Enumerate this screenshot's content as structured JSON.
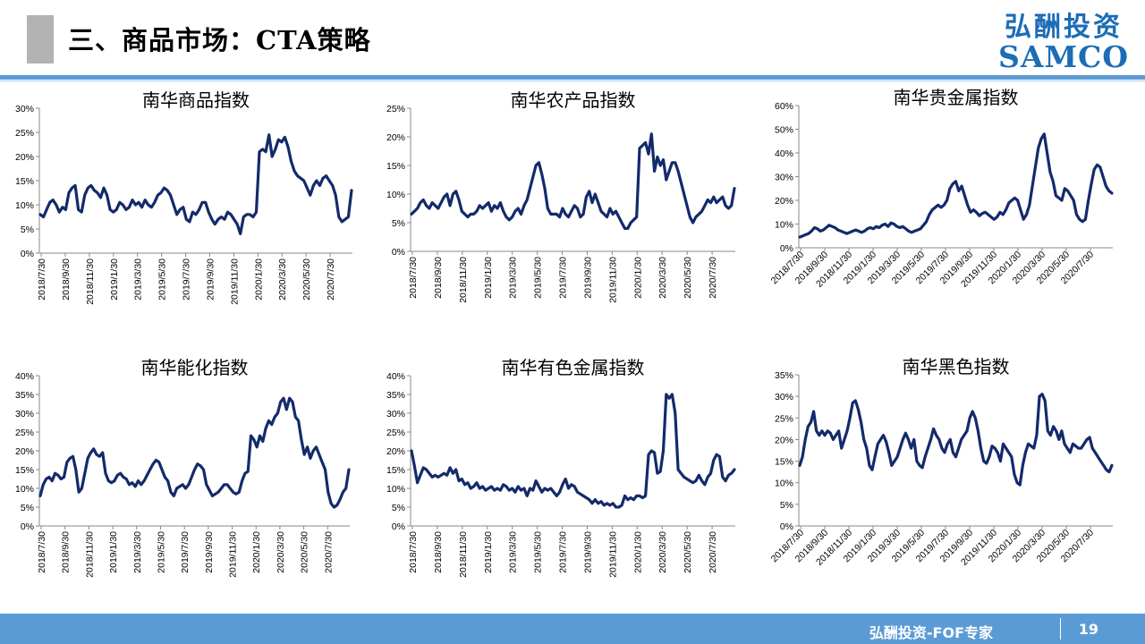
{
  "header": {
    "title": "三、商品市场：CTA策略",
    "logo_cn": "弘酬投资",
    "logo_en": "SAMCO"
  },
  "footer": {
    "text": "弘酬投资-FOF专家",
    "page_number": "19"
  },
  "colors": {
    "line": "#132a6b",
    "accent": "#5b9bd5",
    "axis": "#888888"
  },
  "chart_data": [
    {
      "type": "line",
      "title": "南华商品指数",
      "x_ticks": [
        "2018/7/30",
        "2018/9/30",
        "2018/11/30",
        "2019/1/30",
        "2019/3/30",
        "2019/5/30",
        "2019/7/30",
        "2019/9/30",
        "2019/11/30",
        "2020/1/30",
        "2020/3/30",
        "2020/5/30",
        "2020/7/30"
      ],
      "y_ticks": [
        "0%",
        "5%",
        "10%",
        "15%",
        "20%",
        "25%",
        "30%"
      ],
      "ylim": [
        0,
        30
      ],
      "series": [
        {
          "values": [
            8,
            7.5,
            9,
            10.5,
            11,
            10,
            8.5,
            9.5,
            9,
            12.5,
            13.5,
            14,
            9,
            8.5,
            12,
            13.5,
            14,
            13,
            12.5,
            11.5,
            13.5,
            12,
            9,
            8.5,
            9,
            10.5,
            10,
            9,
            9.5,
            11,
            10,
            10.5,
            9.5,
            11,
            10,
            9.5,
            10.5,
            12,
            12.5,
            13.5,
            13,
            12,
            10,
            8,
            9,
            9.5,
            7,
            6.5,
            8.5,
            8,
            9,
            10.5,
            10.5,
            8.5,
            7,
            6,
            7,
            7.5,
            7,
            8.5,
            8,
            7,
            6,
            4,
            7.5,
            8,
            8,
            7.5,
            8.5,
            21,
            21.5,
            21,
            24.5,
            20,
            21.5,
            23.5,
            23,
            24,
            22,
            19,
            17,
            16,
            15.5,
            15,
            13.5,
            12,
            14,
            15,
            14,
            15.5,
            16,
            15,
            14,
            12,
            7.5,
            6.5,
            7,
            7.5,
            13
          ]
        }
      ]
    },
    {
      "type": "line",
      "title": "南华农产品指数",
      "x_ticks": [
        "2018/7/30",
        "2018/9/30",
        "2018/11/30",
        "2019/1/30",
        "2019/3/30",
        "2019/5/30",
        "2019/7/30",
        "2019/9/30",
        "2019/11/30",
        "2020/1/30",
        "2020/3/30",
        "2020/5/30",
        "2020/7/30"
      ],
      "y_ticks": [
        "0%",
        "5%",
        "10%",
        "15%",
        "20%",
        "25%"
      ],
      "ylim": [
        0,
        25
      ],
      "series": [
        {
          "values": [
            6.5,
            7,
            7.5,
            8.5,
            9,
            8,
            7.5,
            8.5,
            8,
            7.5,
            8.5,
            9.5,
            10,
            8,
            10,
            10.5,
            9,
            7,
            6.5,
            6,
            6.5,
            6.5,
            7,
            8,
            7.5,
            8,
            8.5,
            7,
            8,
            7.5,
            8.5,
            7,
            6,
            5.5,
            6,
            7,
            7.5,
            6.5,
            8,
            9,
            11,
            13,
            15,
            15.5,
            13.5,
            11,
            7.5,
            6.5,
            6.5,
            6.5,
            6,
            7.5,
            6.5,
            6,
            7,
            8,
            7.5,
            6,
            6.5,
            9.5,
            10.5,
            8.5,
            10,
            8.5,
            7,
            6.5,
            6,
            7.5,
            6.5,
            7,
            6,
            5,
            4,
            4,
            5,
            5.5,
            6,
            18,
            18.5,
            19,
            17,
            20.5,
            14,
            16.5,
            15,
            16,
            12.5,
            14,
            15.5,
            15.5,
            14,
            12,
            10,
            8,
            6,
            5,
            6,
            6.5,
            7,
            8,
            9,
            8.5,
            9.5,
            8.5,
            9,
            9.5,
            8,
            7.5,
            8,
            11
          ]
        }
      ]
    },
    {
      "type": "line",
      "title": "南华贵金属指数",
      "x_ticks": [
        "2018/7/30",
        "2018/9/30",
        "2018/11/30",
        "2019/1/30",
        "2019/3/30",
        "2019/5/30",
        "2019/7/30",
        "2019/9/30",
        "2019/11/30",
        "2020/1/30",
        "2020/3/30",
        "2020/5/30",
        "2020/7/30"
      ],
      "y_ticks": [
        "0%",
        "10%",
        "20%",
        "30%",
        "40%",
        "50%",
        "60%"
      ],
      "ylim": [
        0,
        60
      ],
      "series": [
        {
          "values": [
            4.5,
            5,
            5.5,
            6,
            7,
            8.5,
            8,
            7,
            7.5,
            8.5,
            9.5,
            9,
            8.5,
            7.5,
            7,
            6.5,
            6,
            6.5,
            7,
            7.5,
            7,
            6.5,
            7,
            8,
            8.5,
            8,
            9,
            8.5,
            9.5,
            10,
            9,
            10.5,
            10,
            9,
            8.5,
            9,
            8,
            7,
            6.5,
            7,
            7.5,
            8,
            9.5,
            11,
            14,
            16,
            17,
            18,
            17,
            18,
            20,
            25,
            27,
            28,
            24,
            26,
            22,
            18,
            15,
            16,
            15,
            13.5,
            14.5,
            15,
            14,
            13,
            12,
            13,
            15,
            14,
            16,
            19,
            20,
            21,
            20,
            16,
            12,
            14,
            18,
            26,
            34,
            42,
            46,
            48,
            40,
            32,
            28,
            22,
            21,
            20,
            25,
            24,
            22,
            20,
            14,
            12,
            11,
            12,
            20,
            27,
            33,
            35,
            34,
            30,
            26,
            24,
            23
          ]
        }
      ]
    },
    {
      "type": "line",
      "title": "南华能化指数",
      "x_ticks": [
        "2018/7/30",
        "2018/9/30",
        "2018/11/30",
        "2019/1/30",
        "2019/3/30",
        "2019/5/30",
        "2019/7/30",
        "2019/9/30",
        "2019/11/30",
        "2020/1/30",
        "2020/3/30",
        "2020/5/30",
        "2020/7/30"
      ],
      "y_ticks": [
        "0%",
        "5%",
        "10%",
        "15%",
        "20%",
        "25%",
        "30%",
        "35%",
        "40%"
      ],
      "ylim": [
        0,
        40
      ],
      "series": [
        {
          "values": [
            8,
            11,
            12.5,
            13,
            12,
            14,
            13.5,
            12.5,
            13,
            17,
            18,
            18.5,
            15,
            9,
            10,
            14,
            18,
            19.5,
            20.5,
            19,
            18.5,
            19.5,
            14,
            12,
            11.5,
            12,
            13.5,
            14,
            13,
            12.5,
            11,
            11.5,
            10.5,
            12,
            11,
            12,
            13.5,
            15,
            16.5,
            17.5,
            17,
            15,
            13,
            12,
            9,
            8,
            10,
            10.5,
            11,
            10,
            11,
            13,
            15,
            16.5,
            16,
            15,
            11,
            9.5,
            8,
            8.5,
            9,
            10,
            11,
            11,
            10,
            9,
            8.5,
            9,
            12,
            14,
            14.5,
            24,
            23,
            21,
            24,
            22.5,
            26,
            28,
            27,
            29,
            30,
            33,
            34,
            31,
            34,
            33,
            29,
            28,
            23,
            19,
            21,
            18,
            20,
            21,
            19,
            17,
            15,
            9,
            6,
            5,
            5.5,
            7,
            9,
            10,
            15
          ]
        }
      ]
    },
    {
      "type": "line",
      "title": "南华有色金属指数",
      "x_ticks": [
        "2018/7/30",
        "2018/9/30",
        "2018/11/30",
        "2019/1/30",
        "2019/3/30",
        "2019/5/30",
        "2019/7/30",
        "2019/9/30",
        "2019/11/30",
        "2020/1/30",
        "2020/3/30",
        "2020/5/30",
        "2020/7/30"
      ],
      "y_ticks": [
        "0%",
        "5%",
        "10%",
        "15%",
        "20%",
        "25%",
        "30%",
        "35%",
        "40%"
      ],
      "ylim": [
        0,
        40
      ],
      "series": [
        {
          "values": [
            20,
            16,
            11.5,
            13.5,
            15.5,
            15,
            14,
            13,
            13.5,
            13,
            13.5,
            14,
            13.5,
            15.5,
            14,
            15,
            12,
            12.5,
            11,
            11.5,
            10,
            10.5,
            11.5,
            10,
            10.5,
            9.5,
            10,
            10.5,
            9.5,
            10,
            9.5,
            11,
            10.5,
            9.5,
            10,
            9,
            10.5,
            9.5,
            10,
            8,
            10,
            9.5,
            12,
            10.5,
            9,
            10,
            9.5,
            10,
            9,
            8,
            9,
            11,
            12.5,
            10,
            11,
            10.5,
            9,
            8.5,
            8,
            7.5,
            7,
            6,
            7,
            6,
            6.5,
            5.5,
            6,
            5.5,
            6,
            5,
            5,
            5.5,
            8,
            7,
            7.5,
            7,
            8,
            8,
            7.5,
            8,
            19,
            20,
            19.5,
            14,
            14.5,
            20,
            35,
            34,
            35,
            30,
            15,
            14,
            13,
            12.5,
            12,
            11.5,
            12,
            13.5,
            12,
            11,
            13,
            14,
            17.5,
            19,
            18.5,
            13,
            12,
            13.5,
            14,
            15
          ]
        }
      ]
    },
    {
      "type": "line",
      "title": "南华黑色指数",
      "x_ticks": [
        "2018/7/30",
        "2018/9/30",
        "2018/11/30",
        "2019/1/30",
        "2019/3/30",
        "2019/5/30",
        "2019/7/30",
        "2019/9/30",
        "2019/11/30",
        "2020/1/30",
        "2020/3/30",
        "2020/5/30",
        "2020/7/30"
      ],
      "y_ticks": [
        "0%",
        "5%",
        "10%",
        "15%",
        "20%",
        "25%",
        "30%",
        "35%"
      ],
      "ylim": [
        0,
        35
      ],
      "series": [
        {
          "values": [
            14,
            16,
            20,
            23,
            24,
            26.5,
            22,
            21,
            22,
            21,
            22,
            21.5,
            20,
            21,
            22,
            18,
            20,
            22,
            25,
            28.5,
            29,
            27,
            24,
            20,
            18,
            14,
            13,
            16,
            19,
            20,
            21,
            19.5,
            17,
            14,
            15,
            16,
            18,
            20,
            21.5,
            20,
            18,
            20,
            15,
            14,
            13.5,
            16,
            18,
            20,
            22.5,
            21,
            20,
            18,
            17,
            19,
            20,
            17,
            16,
            18,
            20,
            21,
            22,
            25,
            26.5,
            25,
            22,
            18,
            15,
            14.5,
            16,
            18.5,
            18,
            17,
            15,
            19,
            18,
            17,
            16,
            12,
            10,
            9.5,
            14,
            17,
            19,
            18.5,
            18,
            21,
            30,
            30.5,
            29,
            22,
            21,
            23,
            22,
            20,
            22,
            19,
            18,
            17,
            19,
            18.5,
            18,
            18,
            19,
            20,
            20.5,
            18,
            17,
            16,
            15,
            14,
            13,
            12.5,
            14
          ]
        }
      ]
    }
  ]
}
